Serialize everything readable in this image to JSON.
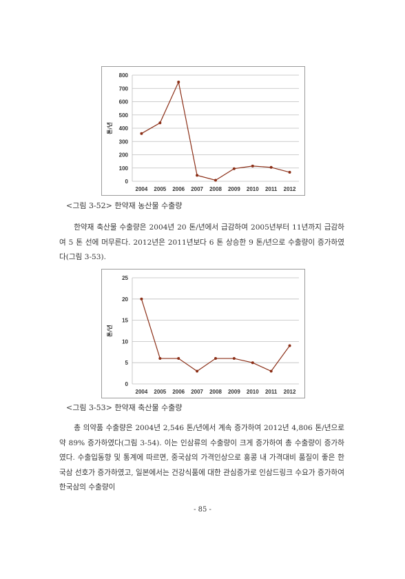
{
  "charts": [
    {
      "chart_data": {
        "type": "line",
        "categories": [
          "2004",
          "2005",
          "2006",
          "2007",
          "2008",
          "2009",
          "2010",
          "2011",
          "2012"
        ],
        "values": [
          360,
          440,
          748,
          45,
          8,
          95,
          115,
          105,
          68
        ],
        "ylabel": "톤/년",
        "ylim": [
          0,
          800
        ],
        "yticks": [
          0,
          100,
          200,
          300,
          400,
          500,
          600,
          700,
          800
        ],
        "grid": true,
        "line_color": "#8b2e16"
      },
      "caption": "<그림 3-52> 한약재 농산물 수출량"
    },
    {
      "chart_data": {
        "type": "line",
        "categories": [
          "2004",
          "2005",
          "2006",
          "2007",
          "2008",
          "2009",
          "2010",
          "2011",
          "2012"
        ],
        "values": [
          20,
          6,
          6,
          3,
          6,
          6,
          5,
          3,
          9
        ],
        "ylabel": "톤/년",
        "ylim": [
          0,
          25
        ],
        "yticks": [
          0,
          5,
          10,
          15,
          20,
          25
        ],
        "grid": true,
        "line_color": "#8b2e16"
      },
      "caption": "<그림 3-53> 한약재 축산물 수출량"
    }
  ],
  "paragraphs": [
    "한약재 축산물 수출량은 2004년 20 톤/년에서 급감하여 2005년부터 11년까지 급감하여 5 톤 선에 머무른다. 2012년은 2011년보다 6 톤 상승한 9 톤/년으로 수출량이 증가하였다(그림 3-53).",
    "총 의약품 수출량은 2004년 2,546 톤/년에서 계속 증가하여 2012년 4,806 톤/년으로 약 89% 증가하였다(그림 3-54). 이는 인삼류의 수출량이 크게 증가하여 총 수출량이 증가하였다. 수출입동향 및 통계에 따르면, 중국삼의 가격인상으로 홍콩 내 가격대비 품질이 좋은 한국삼 선호가 증가하였고, 일본에서는 건강식품에 대한 관심증가로 인삼드링크 수요가 증가하여 한국삼의 수출량이"
  ],
  "footer": "- 85 -"
}
